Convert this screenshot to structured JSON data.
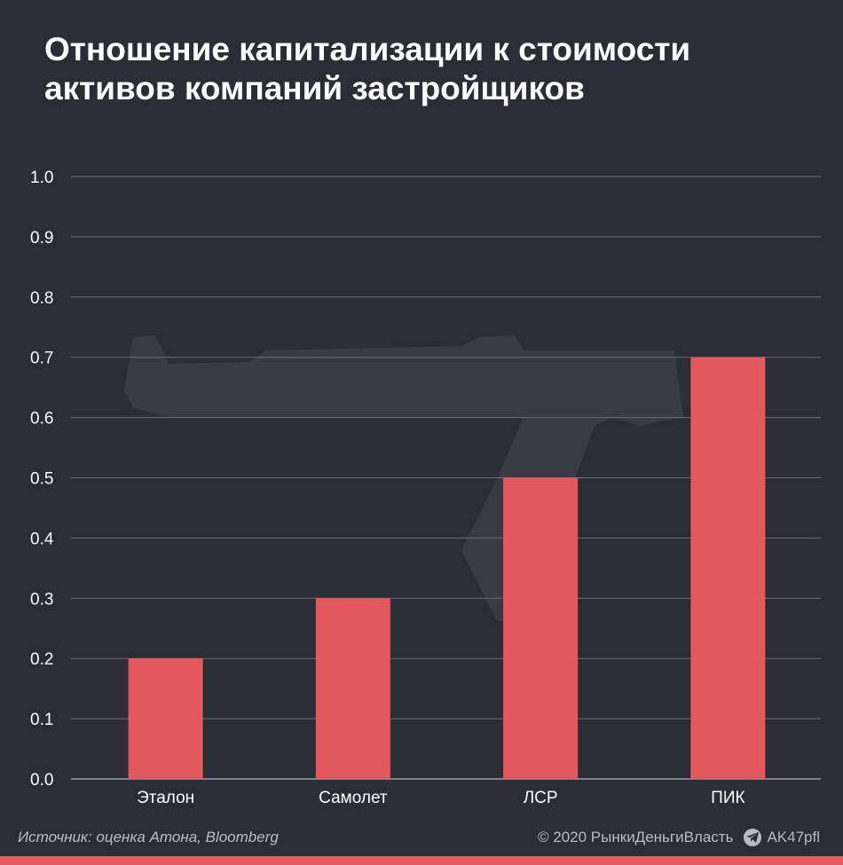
{
  "title": {
    "line1": "Отношение капитализации к стоимости",
    "line2": "активов компаний застройщиков"
  },
  "chart_data": {
    "type": "bar",
    "categories": [
      "Эталон",
      "Самолет",
      "ЛСР",
      "ПИК"
    ],
    "values": [
      0.2,
      0.3,
      0.5,
      0.7
    ],
    "ylim": [
      0.0,
      1.0
    ],
    "yticks": [
      "0.0",
      "0.1",
      "0.2",
      "0.3",
      "0.4",
      "0.5",
      "0.6",
      "0.7",
      "0.8",
      "0.9",
      "1.0"
    ],
    "grid": true,
    "bar_color": "#e85a5e"
  },
  "footer": {
    "source": "Источник: оценка Атона, Bloomberg",
    "copyright": "© 2020  РынкиДеньгиВласть",
    "channel": "AK47pfl"
  },
  "colors": {
    "background": "#2a2d36",
    "accent": "#e85a5e",
    "grid": "#6c6f78",
    "text": "#ffffff"
  },
  "watermark": {
    "icon": "rifle-watermark-icon"
  }
}
